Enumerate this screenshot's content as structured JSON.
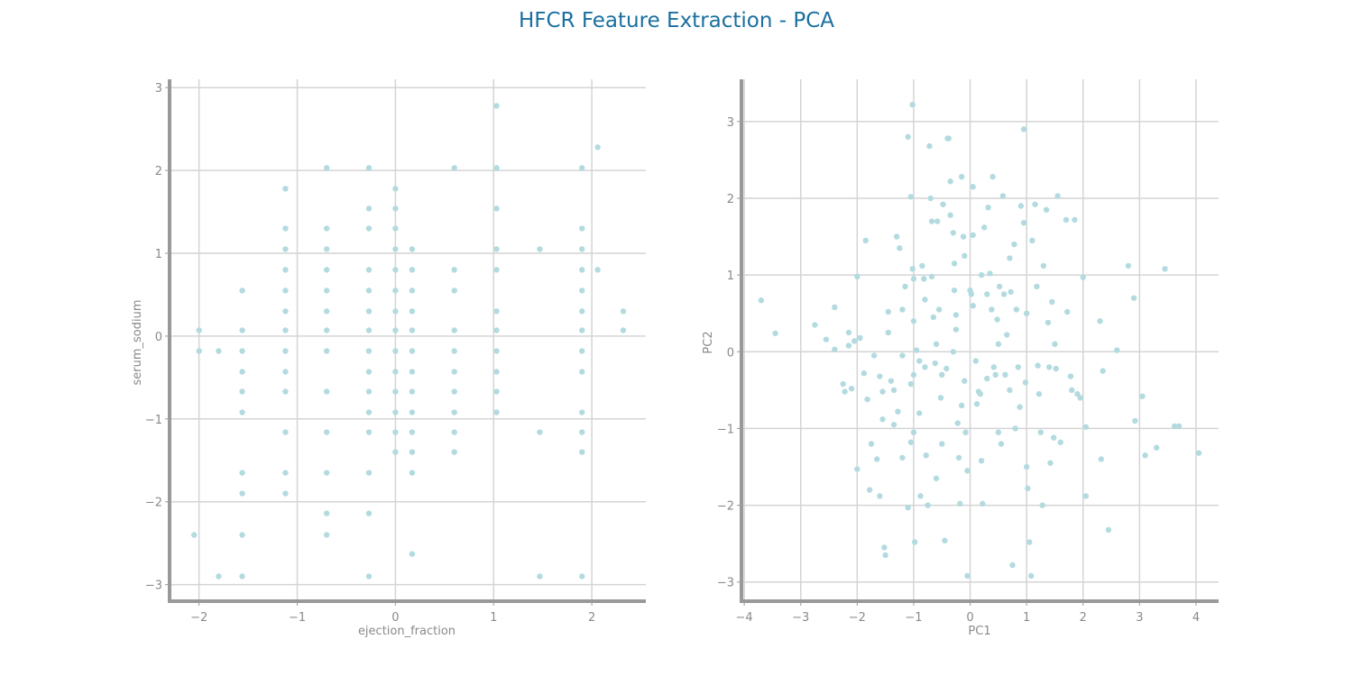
{
  "figure": {
    "title": "HFCR Feature Extraction - PCA"
  },
  "colors": {
    "title": "#1a6fa0",
    "points": "#b3dbdf",
    "grid": "#d4d4d4",
    "axis_spine": "#999999",
    "tick_text": "#8a8a8a"
  },
  "chart_data": [
    {
      "type": "scatter",
      "title": "",
      "xlabel": "ejection_fraction",
      "ylabel": "serum_sodium",
      "xlim": [
        -2.3,
        2.55
      ],
      "ylim": [
        -3.2,
        3.1
      ],
      "xticks": [
        -2,
        -1,
        0,
        1,
        2
      ],
      "yticks": [
        -3,
        -2,
        -1,
        0,
        1,
        2,
        3
      ],
      "grid": true,
      "points": [
        [
          -2.0,
          0.07
        ],
        [
          -2.0,
          -0.18
        ],
        [
          -1.8,
          -0.18
        ],
        [
          -2.05,
          -2.4
        ],
        [
          -1.8,
          -2.9
        ],
        [
          -1.56,
          0.55
        ],
        [
          -1.56,
          0.07
        ],
        [
          -1.56,
          -0.18
        ],
        [
          -1.56,
          -0.43
        ],
        [
          -1.56,
          -0.67
        ],
        [
          -1.56,
          -0.92
        ],
        [
          -1.56,
          -1.65
        ],
        [
          -1.56,
          -1.9
        ],
        [
          -1.56,
          -2.4
        ],
        [
          -1.56,
          -2.9
        ],
        [
          -1.12,
          1.78
        ],
        [
          -1.12,
          1.3
        ],
        [
          -1.12,
          1.05
        ],
        [
          -1.12,
          0.8
        ],
        [
          -1.12,
          0.55
        ],
        [
          -1.12,
          0.3
        ],
        [
          -1.12,
          0.07
        ],
        [
          -1.12,
          -0.18
        ],
        [
          -1.12,
          -0.43
        ],
        [
          -1.12,
          -0.67
        ],
        [
          -1.12,
          -1.16
        ],
        [
          -1.12,
          -1.65
        ],
        [
          -1.12,
          -1.9
        ],
        [
          -0.7,
          2.03
        ],
        [
          -0.7,
          1.3
        ],
        [
          -0.7,
          1.05
        ],
        [
          -0.7,
          0.8
        ],
        [
          -0.7,
          0.55
        ],
        [
          -0.7,
          0.3
        ],
        [
          -0.7,
          0.07
        ],
        [
          -0.7,
          -0.18
        ],
        [
          -0.7,
          -0.67
        ],
        [
          -0.7,
          -1.16
        ],
        [
          -0.7,
          -1.65
        ],
        [
          -0.7,
          -2.14
        ],
        [
          -0.7,
          -2.4
        ],
        [
          -0.27,
          2.03
        ],
        [
          -0.27,
          1.54
        ],
        [
          -0.27,
          1.3
        ],
        [
          -0.27,
          0.8
        ],
        [
          -0.27,
          0.55
        ],
        [
          -0.27,
          0.3
        ],
        [
          -0.27,
          0.07
        ],
        [
          -0.27,
          -0.18
        ],
        [
          -0.27,
          -0.43
        ],
        [
          -0.27,
          -0.67
        ],
        [
          -0.27,
          -0.92
        ],
        [
          -0.27,
          -1.16
        ],
        [
          -0.27,
          -1.65
        ],
        [
          -0.27,
          -2.14
        ],
        [
          -0.27,
          -2.9
        ],
        [
          0.0,
          1.78
        ],
        [
          0.0,
          1.54
        ],
        [
          0.0,
          1.3
        ],
        [
          0.0,
          1.05
        ],
        [
          0.0,
          0.8
        ],
        [
          0.0,
          0.55
        ],
        [
          0.0,
          0.3
        ],
        [
          0.0,
          0.07
        ],
        [
          0.0,
          -0.18
        ],
        [
          0.0,
          -0.43
        ],
        [
          0.0,
          -0.67
        ],
        [
          0.0,
          -0.92
        ],
        [
          0.0,
          -1.16
        ],
        [
          0.0,
          -1.4
        ],
        [
          0.17,
          1.05
        ],
        [
          0.17,
          0.8
        ],
        [
          0.17,
          0.55
        ],
        [
          0.17,
          0.3
        ],
        [
          0.17,
          0.07
        ],
        [
          0.17,
          -0.18
        ],
        [
          0.17,
          -0.43
        ],
        [
          0.17,
          -0.67
        ],
        [
          0.17,
          -0.92
        ],
        [
          0.17,
          -1.16
        ],
        [
          0.17,
          -1.4
        ],
        [
          0.17,
          -1.65
        ],
        [
          0.17,
          -2.63
        ],
        [
          0.6,
          2.03
        ],
        [
          0.6,
          0.8
        ],
        [
          0.6,
          0.55
        ],
        [
          0.6,
          0.07
        ],
        [
          0.6,
          -0.18
        ],
        [
          0.6,
          -0.43
        ],
        [
          0.6,
          -0.67
        ],
        [
          0.6,
          -0.92
        ],
        [
          0.6,
          -1.16
        ],
        [
          0.6,
          -1.4
        ],
        [
          1.03,
          2.78
        ],
        [
          1.03,
          2.03
        ],
        [
          1.03,
          1.54
        ],
        [
          1.03,
          1.05
        ],
        [
          1.03,
          0.8
        ],
        [
          1.03,
          0.3
        ],
        [
          1.03,
          0.07
        ],
        [
          1.03,
          -0.18
        ],
        [
          1.03,
          -0.43
        ],
        [
          1.03,
          -0.67
        ],
        [
          1.03,
          -0.92
        ],
        [
          1.47,
          1.05
        ],
        [
          1.47,
          -1.16
        ],
        [
          1.47,
          -2.9
        ],
        [
          1.9,
          2.03
        ],
        [
          1.9,
          1.3
        ],
        [
          1.9,
          1.05
        ],
        [
          1.9,
          0.8
        ],
        [
          1.9,
          0.55
        ],
        [
          1.9,
          0.3
        ],
        [
          1.9,
          0.07
        ],
        [
          1.9,
          -0.18
        ],
        [
          1.9,
          -0.43
        ],
        [
          1.9,
          -0.92
        ],
        [
          1.9,
          -1.16
        ],
        [
          1.9,
          -1.4
        ],
        [
          1.9,
          -2.9
        ],
        [
          2.06,
          2.28
        ],
        [
          2.06,
          0.8
        ],
        [
          2.32,
          0.3
        ],
        [
          2.32,
          0.07
        ]
      ]
    },
    {
      "type": "scatter",
      "title": "",
      "xlabel": "PC1",
      "ylabel": "PC2",
      "xlim": [
        -4.05,
        4.4
      ],
      "ylim": [
        -3.25,
        3.55
      ],
      "xticks": [
        -4,
        -3,
        -2,
        -1,
        0,
        1,
        2,
        3,
        4
      ],
      "yticks": [
        -3,
        -2,
        -1,
        0,
        1,
        2,
        3
      ],
      "grid": true,
      "points": [
        [
          -3.7,
          0.67
        ],
        [
          -3.45,
          0.24
        ],
        [
          -2.75,
          0.35
        ],
        [
          -2.55,
          0.16
        ],
        [
          -2.4,
          0.58
        ],
        [
          -2.4,
          0.03
        ],
        [
          -2.25,
          -0.42
        ],
        [
          -2.22,
          -0.52
        ],
        [
          -2.15,
          0.25
        ],
        [
          -2.15,
          0.08
        ],
        [
          -2.1,
          -0.48
        ],
        [
          -2.05,
          0.14
        ],
        [
          -2.0,
          0.98
        ],
        [
          -1.95,
          0.18
        ],
        [
          -1.88,
          -0.28
        ],
        [
          -2.0,
          -1.53
        ],
        [
          -1.85,
          1.45
        ],
        [
          -1.82,
          -0.62
        ],
        [
          -1.78,
          -1.8
        ],
        [
          -1.75,
          -1.2
        ],
        [
          -1.7,
          -0.05
        ],
        [
          -1.65,
          -1.4
        ],
        [
          -1.6,
          -1.88
        ],
        [
          -1.55,
          -0.52
        ],
        [
          -1.55,
          -0.88
        ],
        [
          -1.52,
          -2.55
        ],
        [
          -1.5,
          -2.65
        ],
        [
          -1.45,
          0.52
        ],
        [
          -1.4,
          -0.38
        ],
        [
          -1.35,
          -0.5
        ],
        [
          -1.35,
          -0.95
        ],
        [
          -1.3,
          1.5
        ],
        [
          -1.28,
          -0.78
        ],
        [
          -1.25,
          1.35
        ],
        [
          -1.2,
          -0.05
        ],
        [
          -1.2,
          -1.38
        ],
        [
          -1.15,
          0.85
        ],
        [
          -1.1,
          -2.03
        ],
        [
          -1.05,
          -0.42
        ],
        [
          -1.05,
          -1.18
        ],
        [
          -1.02,
          1.08
        ],
        [
          -1.0,
          0.95
        ],
        [
          -1.0,
          0.4
        ],
        [
          -1.0,
          -0.3
        ],
        [
          -1.0,
          -1.05
        ],
        [
          -1.02,
          3.22
        ],
        [
          -1.05,
          2.02
        ],
        [
          -1.1,
          2.8
        ],
        [
          -0.98,
          -2.48
        ],
        [
          -0.95,
          0.02
        ],
        [
          -0.9,
          -0.8
        ],
        [
          -0.88,
          -1.88
        ],
        [
          -0.85,
          1.12
        ],
        [
          -0.82,
          0.95
        ],
        [
          -0.8,
          0.68
        ],
        [
          -0.8,
          -0.2
        ],
        [
          -0.78,
          -1.35
        ],
        [
          -0.75,
          -2.0
        ],
        [
          -0.72,
          2.68
        ],
        [
          -0.7,
          2.0
        ],
        [
          -0.68,
          1.7
        ],
        [
          -0.68,
          0.98
        ],
        [
          -0.65,
          0.45
        ],
        [
          -0.62,
          -0.15
        ],
        [
          -0.6,
          -1.65
        ],
        [
          -0.58,
          1.7
        ],
        [
          -0.55,
          0.55
        ],
        [
          -0.52,
          -0.6
        ],
        [
          -0.5,
          -1.2
        ],
        [
          -0.48,
          1.92
        ],
        [
          -0.45,
          -2.46
        ],
        [
          -0.42,
          -0.22
        ],
        [
          -0.4,
          2.78
        ],
        [
          -0.38,
          2.78
        ],
        [
          -0.35,
          2.22
        ],
        [
          -0.35,
          1.78
        ],
        [
          -0.3,
          1.55
        ],
        [
          -0.28,
          1.15
        ],
        [
          -0.28,
          0.8
        ],
        [
          -0.25,
          0.48
        ],
        [
          -0.25,
          0.29
        ],
        [
          -0.22,
          -0.93
        ],
        [
          -0.2,
          -1.38
        ],
        [
          -0.18,
          -1.98
        ],
        [
          -0.15,
          2.28
        ],
        [
          -0.12,
          1.5
        ],
        [
          -0.1,
          1.25
        ],
        [
          -0.1,
          -0.38
        ],
        [
          -0.08,
          -1.05
        ],
        [
          -0.05,
          -2.92
        ],
        [
          -0.05,
          -1.55
        ],
        [
          0.0,
          0.8
        ],
        [
          0.02,
          0.75
        ],
        [
          0.05,
          0.6
        ],
        [
          0.05,
          2.15
        ],
        [
          0.05,
          1.52
        ],
        [
          0.1,
          -0.12
        ],
        [
          0.12,
          -0.68
        ],
        [
          0.15,
          -0.52
        ],
        [
          0.18,
          -0.55
        ],
        [
          0.2,
          -1.42
        ],
        [
          0.22,
          -1.98
        ],
        [
          0.25,
          1.62
        ],
        [
          0.3,
          0.75
        ],
        [
          0.32,
          1.88
        ],
        [
          0.35,
          1.02
        ],
        [
          0.38,
          0.55
        ],
        [
          0.4,
          2.28
        ],
        [
          0.42,
          -0.2
        ],
        [
          0.45,
          -0.3
        ],
        [
          0.48,
          0.42
        ],
        [
          0.5,
          -1.05
        ],
        [
          0.52,
          0.85
        ],
        [
          0.55,
          -1.2
        ],
        [
          0.58,
          2.03
        ],
        [
          0.6,
          0.75
        ],
        [
          0.62,
          -0.3
        ],
        [
          0.65,
          0.22
        ],
        [
          0.7,
          1.22
        ],
        [
          0.72,
          0.78
        ],
        [
          0.75,
          -2.78
        ],
        [
          0.78,
          1.4
        ],
        [
          0.8,
          -1.0
        ],
        [
          0.82,
          0.55
        ],
        [
          0.85,
          -0.2
        ],
        [
          0.88,
          -0.72
        ],
        [
          0.9,
          1.9
        ],
        [
          0.95,
          2.9
        ],
        [
          0.95,
          1.68
        ],
        [
          0.98,
          -0.4
        ],
        [
          1.0,
          -1.5
        ],
        [
          1.02,
          -1.78
        ],
        [
          1.05,
          -2.48
        ],
        [
          1.08,
          -2.92
        ],
        [
          1.1,
          1.45
        ],
        [
          1.15,
          1.92
        ],
        [
          1.18,
          0.85
        ],
        [
          1.2,
          -0.18
        ],
        [
          1.22,
          -0.55
        ],
        [
          1.25,
          -1.05
        ],
        [
          1.28,
          -2.0
        ],
        [
          1.3,
          1.12
        ],
        [
          1.35,
          1.85
        ],
        [
          1.38,
          0.38
        ],
        [
          1.4,
          -0.2
        ],
        [
          1.42,
          -1.45
        ],
        [
          1.45,
          0.65
        ],
        [
          1.48,
          -1.12
        ],
        [
          1.52,
          -0.22
        ],
        [
          1.55,
          2.03
        ],
        [
          1.6,
          -1.18
        ],
        [
          1.7,
          1.72
        ],
        [
          1.72,
          0.52
        ],
        [
          1.78,
          -0.32
        ],
        [
          1.8,
          -0.5
        ],
        [
          1.85,
          1.72
        ],
        [
          1.9,
          -0.55
        ],
        [
          1.95,
          -0.6
        ],
        [
          2.0,
          0.97
        ],
        [
          2.05,
          -0.98
        ],
        [
          2.05,
          -1.88
        ],
        [
          2.3,
          0.4
        ],
        [
          2.32,
          -1.4
        ],
        [
          2.35,
          -0.25
        ],
        [
          2.45,
          -2.32
        ],
        [
          2.6,
          0.02
        ],
        [
          2.8,
          1.12
        ],
        [
          2.9,
          0.7
        ],
        [
          2.92,
          -0.9
        ],
        [
          3.05,
          -0.58
        ],
        [
          3.1,
          -1.35
        ],
        [
          3.3,
          -1.25
        ],
        [
          3.45,
          1.08
        ],
        [
          3.62,
          -0.97
        ],
        [
          3.7,
          -0.97
        ],
        [
          4.05,
          -1.32
        ],
        [
          -1.45,
          0.25
        ],
        [
          -1.6,
          -0.32
        ],
        [
          -0.9,
          -0.12
        ],
        [
          -0.5,
          -0.3
        ],
        [
          0.5,
          0.1
        ],
        [
          1.0,
          0.5
        ],
        [
          -0.3,
          0.0
        ],
        [
          0.3,
          -0.35
        ],
        [
          -1.2,
          0.55
        ],
        [
          0.7,
          -0.5
        ],
        [
          -0.6,
          0.1
        ],
        [
          0.2,
          1.0
        ],
        [
          -0.15,
          -0.7
        ],
        [
          1.5,
          0.1
        ]
      ]
    }
  ]
}
